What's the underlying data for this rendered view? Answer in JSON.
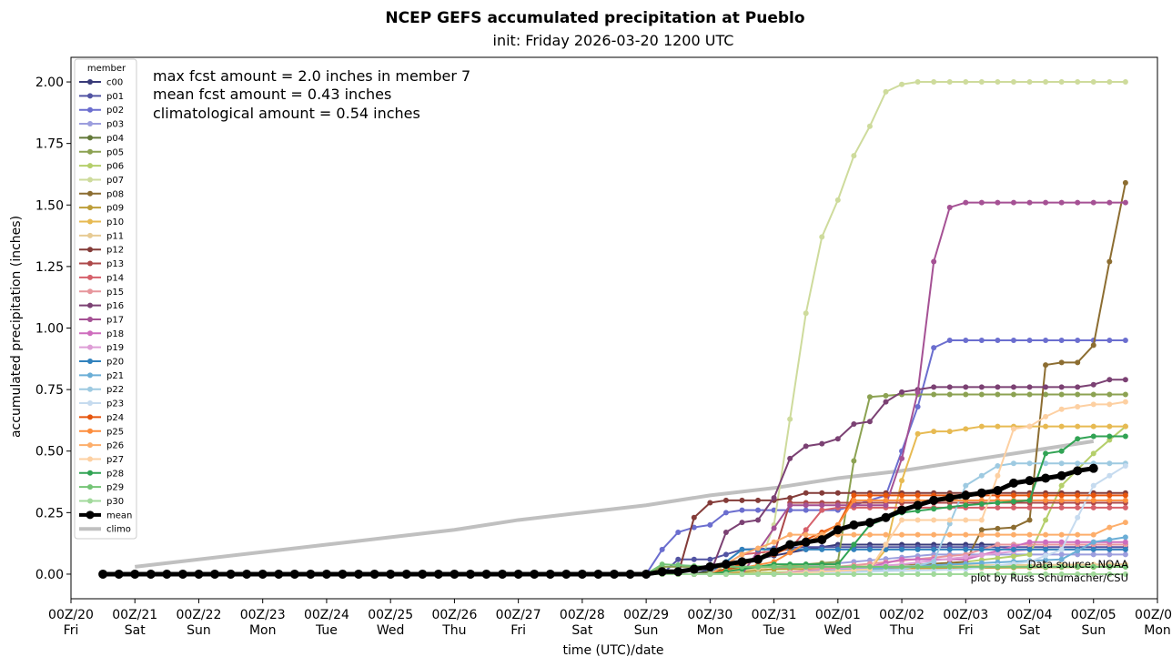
{
  "chart_data": {
    "type": "line",
    "title": "NCEP GEFS accumulated precipitation at Pueblo",
    "subtitle": "init: Friday 2026-03-20 1200 UTC",
    "xlabel": "time (UTC)/date",
    "ylabel": "accumulated precipitation (inches)",
    "units": "inches",
    "x_unit": "days since 2026-03-20 00Z",
    "xlim": [
      0,
      17
    ],
    "ylim": [
      -0.1,
      2.1
    ],
    "grid": false,
    "legend_title": "member",
    "legend_position": "upper-left",
    "x_ticks": [
      {
        "value": 0,
        "top": "00Z/20",
        "bottom": "Fri"
      },
      {
        "value": 1,
        "top": "00Z/21",
        "bottom": "Sat"
      },
      {
        "value": 2,
        "top": "00Z/22",
        "bottom": "Sun"
      },
      {
        "value": 3,
        "top": "00Z/23",
        "bottom": "Mon"
      },
      {
        "value": 4,
        "top": "00Z/24",
        "bottom": "Tue"
      },
      {
        "value": 5,
        "top": "00Z/25",
        "bottom": "Wed"
      },
      {
        "value": 6,
        "top": "00Z/26",
        "bottom": "Thu"
      },
      {
        "value": 7,
        "top": "00Z/27",
        "bottom": "Fri"
      },
      {
        "value": 8,
        "top": "00Z/28",
        "bottom": "Sat"
      },
      {
        "value": 9,
        "top": "00Z/29",
        "bottom": "Sun"
      },
      {
        "value": 10,
        "top": "00Z/30",
        "bottom": "Mon"
      },
      {
        "value": 11,
        "top": "00Z/31",
        "bottom": "Tue"
      },
      {
        "value": 12,
        "top": "00Z/01",
        "bottom": "Wed"
      },
      {
        "value": 13,
        "top": "00Z/02",
        "bottom": "Thu"
      },
      {
        "value": 14,
        "top": "00Z/03",
        "bottom": "Fri"
      },
      {
        "value": 15,
        "top": "00Z/04",
        "bottom": "Sat"
      },
      {
        "value": 16,
        "top": "00Z/05",
        "bottom": "Sun"
      },
      {
        "value": 17,
        "top": "00Z/06",
        "bottom": "Mon"
      }
    ],
    "y_ticks": [
      "0.00",
      "0.25",
      "0.50",
      "0.75",
      "1.00",
      "1.25",
      "1.50",
      "1.75",
      "2.00"
    ],
    "annotations": [
      "max fcst amount = 2.0 inches in member 7",
      "mean fcst amount = 0.43 inches",
      "climatological amount = 0.54 inches"
    ],
    "credits": [
      "Data source: NOAA",
      "plot by Russ Schumacher/CSU"
    ],
    "x_start": 0.5,
    "x_step": 0.25,
    "series": [
      {
        "name": "c00",
        "color": "#393b79",
        "values": {
          "9.75": 0.0,
          "10.0": 0.02,
          "10.5": 0.05,
          "11.5": 0.1,
          "12.0": 0.12,
          "14.0": 0.12,
          "16.5": 0.12
        }
      },
      {
        "name": "p01",
        "color": "#5254a3",
        "values": {
          "9.25": 0.0,
          "9.5": 0.06,
          "10.0": 0.06,
          "10.5": 0.1,
          "11.5": 0.11,
          "13.0": 0.11,
          "16.5": 0.11
        }
      },
      {
        "name": "p02",
        "color": "#6b6ecf",
        "values": {
          "9.0": 0.0,
          "9.25": 0.1,
          "9.5": 0.17,
          "9.75": 0.19,
          "10.0": 0.2,
          "10.25": 0.25,
          "10.5": 0.26,
          "12.0": 0.26,
          "12.75": 0.32,
          "13.25": 0.68,
          "13.5": 0.92,
          "13.75": 0.95,
          "16.5": 0.95
        }
      },
      {
        "name": "p03",
        "color": "#9c9ede",
        "values": {
          "10.0": 0.0,
          "11.0": 0.02,
          "13.5": 0.08,
          "14.0": 0.08,
          "16.5": 0.08
        }
      },
      {
        "name": "p04",
        "color": "#637939",
        "values": {
          "9.75": 0.0,
          "10.5": 0.03,
          "12.0": 0.03,
          "16.5": 0.03
        }
      },
      {
        "name": "p05",
        "color": "#8ca252",
        "values": {
          "9.0": 0.0,
          "9.25": 0.03,
          "11.0": 0.03,
          "12.0": 0.05,
          "12.25": 0.46,
          "12.5": 0.72,
          "13.0": 0.73,
          "16.5": 0.73
        }
      },
      {
        "name": "p06",
        "color": "#b5cf6b",
        "values": {
          "10.0": 0.0,
          "13.0": 0.02,
          "15.0": 0.08,
          "15.5": 0.36,
          "16.0": 0.49,
          "16.5": 0.6
        }
      },
      {
        "name": "p07",
        "color": "#cedb9c",
        "values": {
          "10.0": 0.0,
          "10.75": 0.02,
          "11.0": 0.2,
          "11.25": 0.63,
          "11.5": 1.06,
          "11.75": 1.37,
          "12.0": 1.52,
          "12.25": 1.7,
          "12.5": 1.82,
          "12.75": 1.96,
          "13.0": 1.99,
          "13.25": 2.0,
          "16.5": 2.0
        }
      },
      {
        "name": "p08",
        "color": "#8c6d31",
        "values": {
          "11.0": 0.0,
          "12.0": 0.02,
          "14.0": 0.05,
          "14.25": 0.18,
          "14.75": 0.19,
          "15.0": 0.22,
          "15.25": 0.85,
          "15.5": 0.86,
          "15.75": 0.86,
          "16.0": 0.93,
          "16.25": 1.27,
          "16.5": 1.59
        }
      },
      {
        "name": "p09",
        "color": "#bd9e39",
        "values": {
          "10.0": 0.0,
          "11.0": 0.02,
          "16.5": 0.03
        }
      },
      {
        "name": "p10",
        "color": "#e7ba52",
        "values": {
          "11.0": 0.0,
          "12.5": 0.02,
          "12.75": 0.1,
          "13.0": 0.38,
          "13.25": 0.57,
          "13.5": 0.58,
          "13.75": 0.58,
          "14.0": 0.59,
          "14.25": 0.6,
          "16.5": 0.6
        }
      },
      {
        "name": "p11",
        "color": "#e7cb94",
        "values": {
          "10.0": 0.0,
          "11.0": 0.03,
          "16.5": 0.04
        }
      },
      {
        "name": "p12",
        "color": "#843c39",
        "values": {
          "9.5": 0.0,
          "9.75": 0.23,
          "10.0": 0.29,
          "10.25": 0.3,
          "10.5": 0.3,
          "11.0": 0.3,
          "11.25": 0.31,
          "11.5": 0.33,
          "16.5": 0.33
        }
      },
      {
        "name": "p13",
        "color": "#ad494a",
        "values": {
          "10.0": 0.0,
          "11.0": 0.08,
          "11.25": 0.29,
          "12.0": 0.29,
          "16.5": 0.29
        }
      },
      {
        "name": "p14",
        "color": "#d6616b",
        "values": {
          "10.0": 0.0,
          "10.5": 0.08,
          "11.25": 0.1,
          "11.75": 0.26,
          "12.0": 0.27,
          "16.5": 0.27
        }
      },
      {
        "name": "p15",
        "color": "#e7969c",
        "values": {
          "11.0": 0.0,
          "12.0": 0.03,
          "14.0": 0.08,
          "14.5": 0.12,
          "16.5": 0.12
        }
      },
      {
        "name": "p16",
        "color": "#7b4173",
        "values": {
          "10.0": 0.0,
          "10.25": 0.17,
          "10.5": 0.21,
          "10.75": 0.22,
          "11.0": 0.31,
          "11.25": 0.47,
          "11.5": 0.52,
          "11.75": 0.53,
          "12.0": 0.55,
          "12.25": 0.61,
          "12.5": 0.62,
          "12.75": 0.7,
          "13.0": 0.74,
          "13.25": 0.75,
          "13.5": 0.76,
          "15.5": 0.76,
          "15.75": 0.76,
          "16.0": 0.77,
          "16.25": 0.79,
          "16.5": 0.79
        }
      },
      {
        "name": "p17",
        "color": "#a55194",
        "values": {
          "10.5": 0.0,
          "11.25": 0.28,
          "12.75": 0.28,
          "13.0": 0.47,
          "13.25": 0.74,
          "13.5": 1.27,
          "13.75": 1.49,
          "14.0": 1.51,
          "16.5": 1.51
        }
      },
      {
        "name": "p18",
        "color": "#ce6dbd",
        "values": {
          "11.0": 0.0,
          "12.5": 0.03,
          "13.0": 0.06,
          "14.0": 0.06,
          "15.0": 0.13,
          "16.5": 0.13
        }
      },
      {
        "name": "p19",
        "color": "#de9ed6",
        "values": {
          "11.0": 0.0,
          "13.0": 0.04,
          "15.0": 0.1,
          "16.5": 0.1
        }
      },
      {
        "name": "p20",
        "color": "#3182bd",
        "values": {
          "10.0": 0.0,
          "10.5": 0.1,
          "12.5": 0.1,
          "16.5": 0.1
        }
      },
      {
        "name": "p21",
        "color": "#6baed6",
        "values": {
          "11.0": 0.0,
          "13.0": 0.03,
          "15.5": 0.06,
          "16.0": 0.13,
          "16.5": 0.15
        }
      },
      {
        "name": "p22",
        "color": "#9ecae1",
        "values": {
          "11.0": 0.0,
          "13.0": 0.02,
          "13.5": 0.05,
          "14.0": 0.36,
          "14.25": 0.4,
          "14.5": 0.44,
          "14.75": 0.45,
          "15.0": 0.45,
          "16.5": 0.45
        }
      },
      {
        "name": "p23",
        "color": "#c6dbef",
        "values": {
          "11.0": 0.0,
          "14.0": 0.02,
          "15.0": 0.05,
          "15.5": 0.1,
          "16.0": 0.36,
          "16.5": 0.44
        }
      },
      {
        "name": "p24",
        "color": "#e6550d",
        "values": {
          "10.0": 0.0,
          "11.0": 0.08,
          "12.0": 0.2,
          "12.25": 0.32,
          "16.5": 0.32
        }
      },
      {
        "name": "p25",
        "color": "#fd8d3c",
        "values": {
          "10.0": 0.0,
          "11.0": 0.05,
          "12.0": 0.2,
          "12.25": 0.3,
          "16.5": 0.3
        }
      },
      {
        "name": "p26",
        "color": "#fdae6b",
        "values": {
          "10.0": 0.0,
          "10.5": 0.08,
          "11.0": 0.13,
          "11.25": 0.16,
          "16.0": 0.16,
          "16.25": 0.19,
          "16.5": 0.21
        }
      },
      {
        "name": "p27",
        "color": "#fdd0a2",
        "values": {
          "11.0": 0.0,
          "12.5": 0.02,
          "13.0": 0.22,
          "14.0": 0.22,
          "14.25": 0.22,
          "14.5": 0.4,
          "14.75": 0.59,
          "15.0": 0.6,
          "15.25": 0.64,
          "15.5": 0.67,
          "15.75": 0.68,
          "16.0": 0.69,
          "16.25": 0.69,
          "16.5": 0.7
        }
      },
      {
        "name": "p28",
        "color": "#31a354",
        "values": {
          "10.0": 0.0,
          "11.0": 0.04,
          "12.0": 0.04,
          "12.5": 0.2,
          "13.0": 0.25,
          "14.0": 0.28,
          "15.0": 0.3,
          "15.25": 0.49,
          "15.5": 0.5,
          "15.75": 0.55,
          "16.0": 0.56,
          "16.5": 0.56
        }
      },
      {
        "name": "p29",
        "color": "#74c476",
        "values": {
          "9.0": 0.0,
          "9.25": 0.04,
          "10.0": 0.03,
          "12.0": 0.03,
          "16.5": 0.03
        }
      },
      {
        "name": "p30",
        "color": "#a1d99b",
        "values": {
          "9.0": 0.0,
          "16.5": 0.0
        }
      },
      {
        "name": "mean",
        "color": "#000000",
        "values": [
          0.0,
          0.0,
          0.0,
          0.0,
          0.0,
          0.0,
          0.0,
          0.0,
          0.0,
          0.0,
          0.0,
          0.0,
          0.0,
          0.0,
          0.0,
          0.0,
          0.0,
          0.0,
          0.0,
          0.0,
          0.0,
          0.0,
          0.0,
          0.0,
          0.0,
          0.0,
          0.0,
          0.0,
          0.0,
          0.0,
          0.0,
          0.0,
          0.0,
          0.0,
          0.0,
          0.01,
          0.01,
          0.02,
          0.03,
          0.04,
          0.05,
          0.06,
          0.09,
          0.12,
          0.13,
          0.14,
          0.18,
          0.2,
          0.21,
          0.23,
          0.26,
          0.28,
          0.3,
          0.31,
          0.32,
          0.33,
          0.34,
          0.37,
          0.38,
          0.39,
          0.4,
          0.42,
          0.43
        ]
      },
      {
        "name": "climo",
        "color": "#c0c0c0",
        "values": {
          "1.0": 0.03,
          "2.0": 0.06,
          "3.0": 0.09,
          "4.0": 0.12,
          "5.0": 0.15,
          "6.0": 0.18,
          "7.0": 0.22,
          "8.0": 0.25,
          "9.0": 0.28,
          "10.0": 0.32,
          "11.0": 0.35,
          "12.0": 0.39,
          "13.0": 0.42,
          "14.0": 0.46,
          "15.0": 0.5,
          "16.0": 0.54
        }
      }
    ]
  }
}
